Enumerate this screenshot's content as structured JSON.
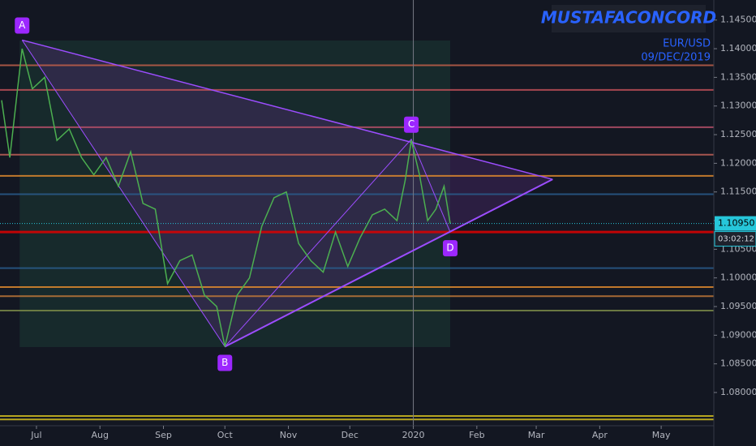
{
  "chart_data": {
    "type": "line",
    "watermark": "MUSTAFACONCORD",
    "symbol": "EUR/USD",
    "date": "09/DEC/2019",
    "xlim": [
      -17.8,
      330.7
    ],
    "ylim": [
      1.0742,
      1.1485
    ],
    "xticks": [
      {
        "value": 0,
        "label": "Jul"
      },
      {
        "value": 31,
        "label": "Aug"
      },
      {
        "value": 62,
        "label": "Sep"
      },
      {
        "value": 92,
        "label": "Oct"
      },
      {
        "value": 123,
        "label": "Nov"
      },
      {
        "value": 153,
        "label": "Dec"
      },
      {
        "value": 184,
        "label": "2020"
      },
      {
        "value": 215,
        "label": "Feb"
      },
      {
        "value": 244,
        "label": "Mar"
      },
      {
        "value": 275,
        "label": "Apr"
      },
      {
        "value": 305,
        "label": "May"
      }
    ],
    "yticks": [
      {
        "value": 1.145,
        "label": "1.14500"
      },
      {
        "value": 1.14,
        "label": "1.14000"
      },
      {
        "value": 1.135,
        "label": "1.13500"
      },
      {
        "value": 1.13,
        "label": "1.13000"
      },
      {
        "value": 1.125,
        "label": "1.12500"
      },
      {
        "value": 1.12,
        "label": "1.12000"
      },
      {
        "value": 1.115,
        "label": "1.11500"
      },
      {
        "value": 1.11,
        "label": "1.11000"
      },
      {
        "value": 1.105,
        "label": "1.10500"
      },
      {
        "value": 1.1,
        "label": "1.10000"
      },
      {
        "value": 1.095,
        "label": "1.09500"
      },
      {
        "value": 1.09,
        "label": "1.09000"
      },
      {
        "value": 1.085,
        "label": "1.08500"
      },
      {
        "value": 1.08,
        "label": "1.08000"
      }
    ],
    "series": [
      {
        "color": "#4caf50",
        "x": [
          -17,
          -13,
          -7,
          -2,
          4,
          10,
          16,
          22,
          28,
          34,
          40,
          46,
          52,
          58,
          64,
          70,
          76,
          82,
          88,
          92,
          98,
          104,
          110,
          116,
          122,
          128,
          134,
          140,
          146,
          152,
          158,
          164,
          170,
          176,
          180,
          183,
          187,
          191,
          195,
          199,
          202
        ],
        "values": [
          1.131,
          1.121,
          1.14,
          1.133,
          1.135,
          1.124,
          1.126,
          1.121,
          1.118,
          1.121,
          1.116,
          1.122,
          1.113,
          1.112,
          1.099,
          1.103,
          1.104,
          1.097,
          1.095,
          1.088,
          1.097,
          1.1,
          1.109,
          1.114,
          1.115,
          1.106,
          1.103,
          1.101,
          1.108,
          1.102,
          1.107,
          1.111,
          1.112,
          1.11,
          1.117,
          1.124,
          1.118,
          1.11,
          1.112,
          1.116,
          1.1095
        ]
      }
    ],
    "levels": [
      {
        "value": 1.1371,
        "color": "#c0604a"
      },
      {
        "value": 1.1328,
        "color": "#c05058"
      },
      {
        "value": 1.1263,
        "color": "#b8506a"
      },
      {
        "value": 1.1215,
        "color": "#c06058"
      },
      {
        "value": 1.1178,
        "color": "#e08a2e"
      },
      {
        "value": 1.1146,
        "color": "#2a5c8c"
      },
      {
        "value": 1.108,
        "color": "#e00000"
      },
      {
        "value": 1.1017,
        "color": "#2a5c8c"
      },
      {
        "value": 1.0984,
        "color": "#e08a2e"
      },
      {
        "value": 1.0968,
        "color": "#c07838"
      },
      {
        "value": 1.0943,
        "color": "#7a8a48"
      },
      {
        "value": 1.0759,
        "color": "#d4c020"
      },
      {
        "value": 1.0753,
        "color": "#d4c020"
      }
    ],
    "points": [
      {
        "label": "A",
        "x": -7,
        "y": 1.1415
      },
      {
        "label": "B",
        "x": 92,
        "y": 1.088
      },
      {
        "label": "C",
        "x": 183,
        "y": 1.1242
      },
      {
        "label": "D",
        "x": 202,
        "y": 1.108
      }
    ],
    "apex": {
      "x": 252,
      "y": 1.1172
    },
    "last_price": {
      "value": 1.1095,
      "label": "1.10950"
    },
    "countdown": "03:02:12"
  }
}
